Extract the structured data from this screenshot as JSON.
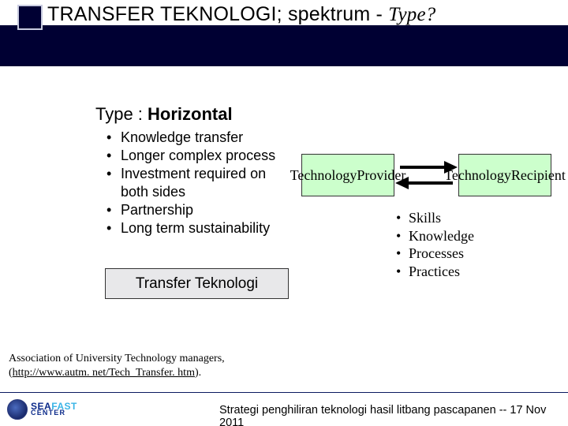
{
  "title": {
    "plain": "TRANSFER TEKNOLOGI; spektrum - ",
    "italic": "Type?"
  },
  "heading": {
    "label": "Type : ",
    "bold": "Horizontal"
  },
  "left_bullets": [
    "Knowledge transfer",
    "Longer complex process",
    "Investment required on",
    "both sides",
    "Partnership",
    "Long term sustainability"
  ],
  "left_bullet_indices_with_marker": [
    0,
    1,
    2,
    4,
    5
  ],
  "transfer_label": "Transfer Teknologi",
  "diagram": {
    "provider": "Technology\nProvider",
    "recipient": "Technology\nRecipient",
    "node_fill": "#ccffcc",
    "node_border": "#333333",
    "arrow_color": "#000000"
  },
  "right_bullets": [
    "Skills",
    "Knowledge",
    "Processes",
    "Practices"
  ],
  "citation": {
    "line1": "Association of University Technology managers,",
    "link_pre": "(",
    "link_text": "http://www.autm. net/Tech_Transfer. htm",
    "link_post": "). "
  },
  "footer": {
    "text": "Strategi penghiliran teknologi hasil litbang pascapanen    --  17 Nov 2011"
  },
  "logo": {
    "brand1a": "SEA",
    "brand1b": "FAST",
    "brand2": "CENTER"
  },
  "colors": {
    "title_band": "#000033",
    "title_square_border": "#c9cce0",
    "transfer_box_bg": "#e8e8ea",
    "footer_line": "#0b1a60"
  }
}
